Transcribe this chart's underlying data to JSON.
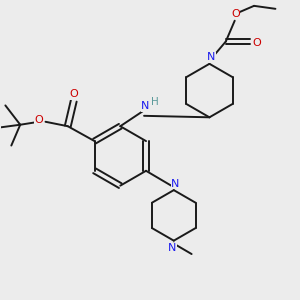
{
  "bg_color": "#ececec",
  "bond_color": "#1a1a1a",
  "N_color": "#1a1aee",
  "O_color": "#cc0000",
  "H_color": "#5a9a9a",
  "lw": 1.4,
  "fs": 7.5,
  "xlim": [
    0,
    10
  ],
  "ylim": [
    0,
    10
  ]
}
